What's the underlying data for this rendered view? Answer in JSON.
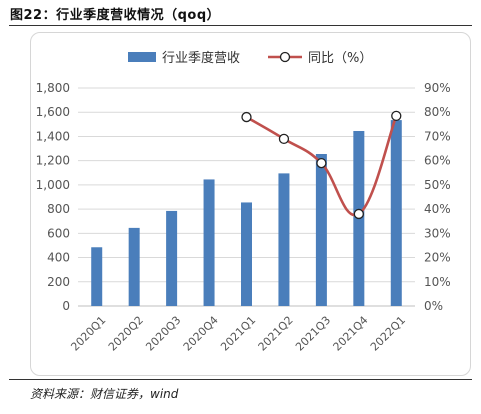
{
  "figure": {
    "title": "图22：行业季度营收情况（qoq）",
    "source": "资料来源：财信证券，wind"
  },
  "colors": {
    "bar": "#4a7ebb",
    "line": "#c0504d",
    "marker_fill": "#ffffff",
    "marker_stroke": "#222222",
    "grid": "#d9d9d9",
    "tick_text": "#555555"
  },
  "chart_data": {
    "type": "bar",
    "categories": [
      "2020Q1",
      "2020Q2",
      "2020Q3",
      "2020Q4",
      "2021Q1",
      "2021Q2",
      "2021Q3",
      "2021Q4",
      "2022Q1"
    ],
    "series": [
      {
        "name": "行业季度营收",
        "type": "bar",
        "axis": "left",
        "values": [
          485,
          645,
          785,
          1045,
          855,
          1095,
          1255,
          1445,
          1535
        ]
      },
      {
        "name": "同比（%）",
        "type": "line",
        "axis": "right",
        "smooth": true,
        "values": [
          null,
          null,
          null,
          null,
          78,
          69,
          59,
          38,
          78.5
        ]
      }
    ],
    "ylim": [
      0,
      1800
    ],
    "yticks": [
      "0",
      "200",
      "400",
      "600",
      "800",
      "1,000",
      "1,200",
      "1,400",
      "1,600",
      "1,800"
    ],
    "y2lim": [
      0,
      90
    ],
    "y2ticks": [
      "0%",
      "10%",
      "20%",
      "30%",
      "40%",
      "50%",
      "60%",
      "70%",
      "80%",
      "90%"
    ],
    "xlabel": "",
    "ylabel": "",
    "grid": true,
    "legend_position": "top"
  }
}
